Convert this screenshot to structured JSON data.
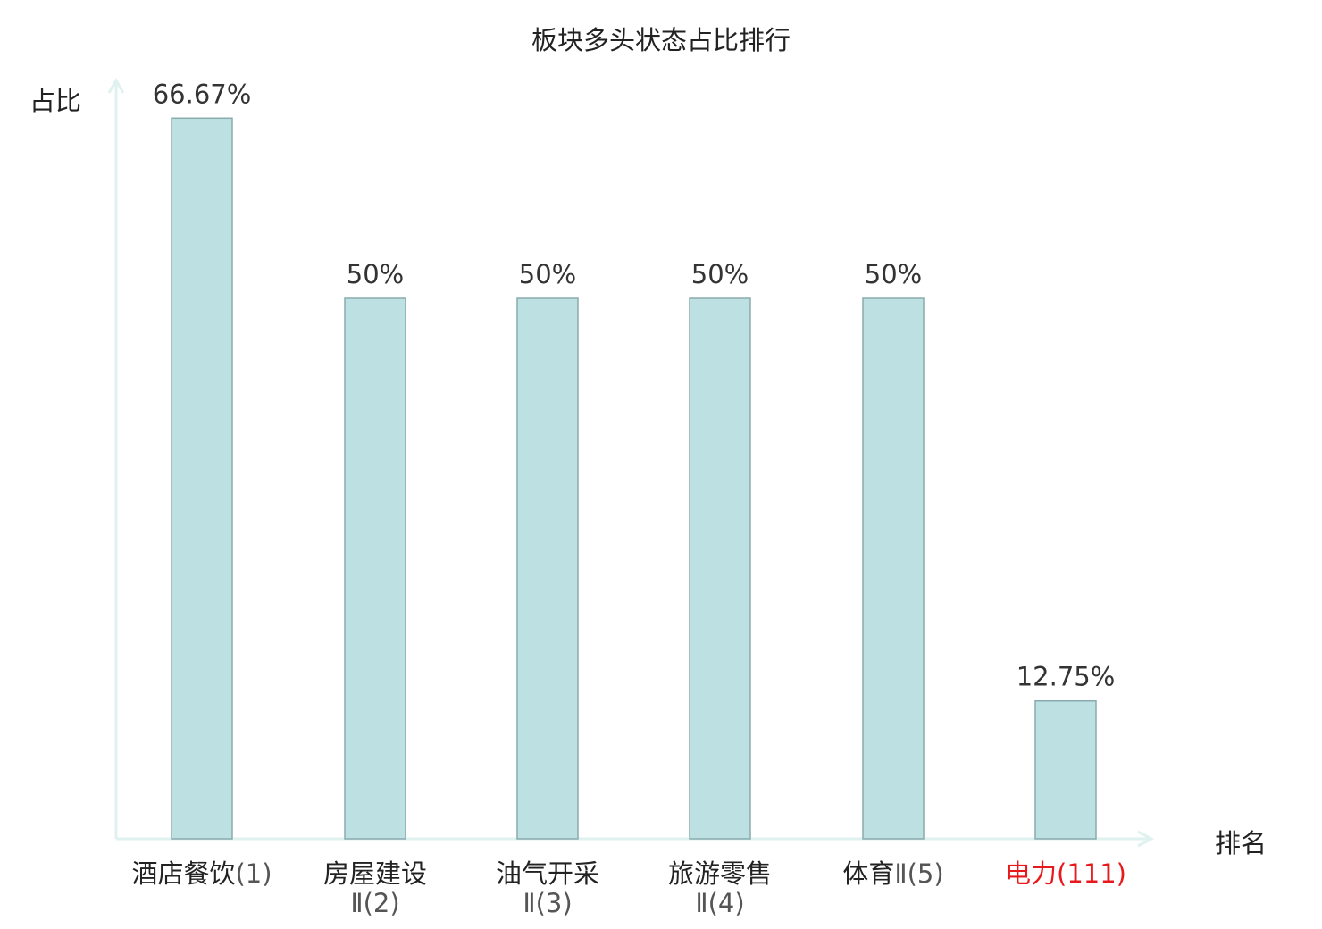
{
  "chart_data": {
    "type": "bar",
    "title": "板块多头状态占比排行",
    "ylabel": "占比",
    "xlabel": "排名",
    "ylim": [
      0,
      70
    ],
    "grid": false,
    "categories": [
      {
        "name": "酒店餐饮",
        "rank": "(1)",
        "name_line2": "",
        "highlight": false
      },
      {
        "name": "房屋建设",
        "rank": "Ⅱ(2)",
        "name_line2": "",
        "highlight": false
      },
      {
        "name": "油气开采",
        "rank": "Ⅱ(3)",
        "name_line2": "",
        "highlight": false
      },
      {
        "name": "旅游零售",
        "rank": "Ⅱ(4)",
        "name_line2": "",
        "highlight": false
      },
      {
        "name": "体育",
        "rank": "Ⅱ(5)",
        "name_line2": "",
        "highlight": false
      },
      {
        "name": "电力",
        "rank": "(111)",
        "name_line2": "",
        "highlight": true
      }
    ],
    "values": [
      66.67,
      50,
      50,
      50,
      50,
      12.75
    ],
    "value_labels": [
      "66.67%",
      "50%",
      "50%",
      "50%",
      "50%",
      "12.75%"
    ],
    "colors": {
      "bar_fill": "#bde0e3",
      "bar_stroke": "#8aabad",
      "axis": "#dff2ef",
      "label_text": "#333333",
      "highlight": "#e8191c"
    }
  }
}
